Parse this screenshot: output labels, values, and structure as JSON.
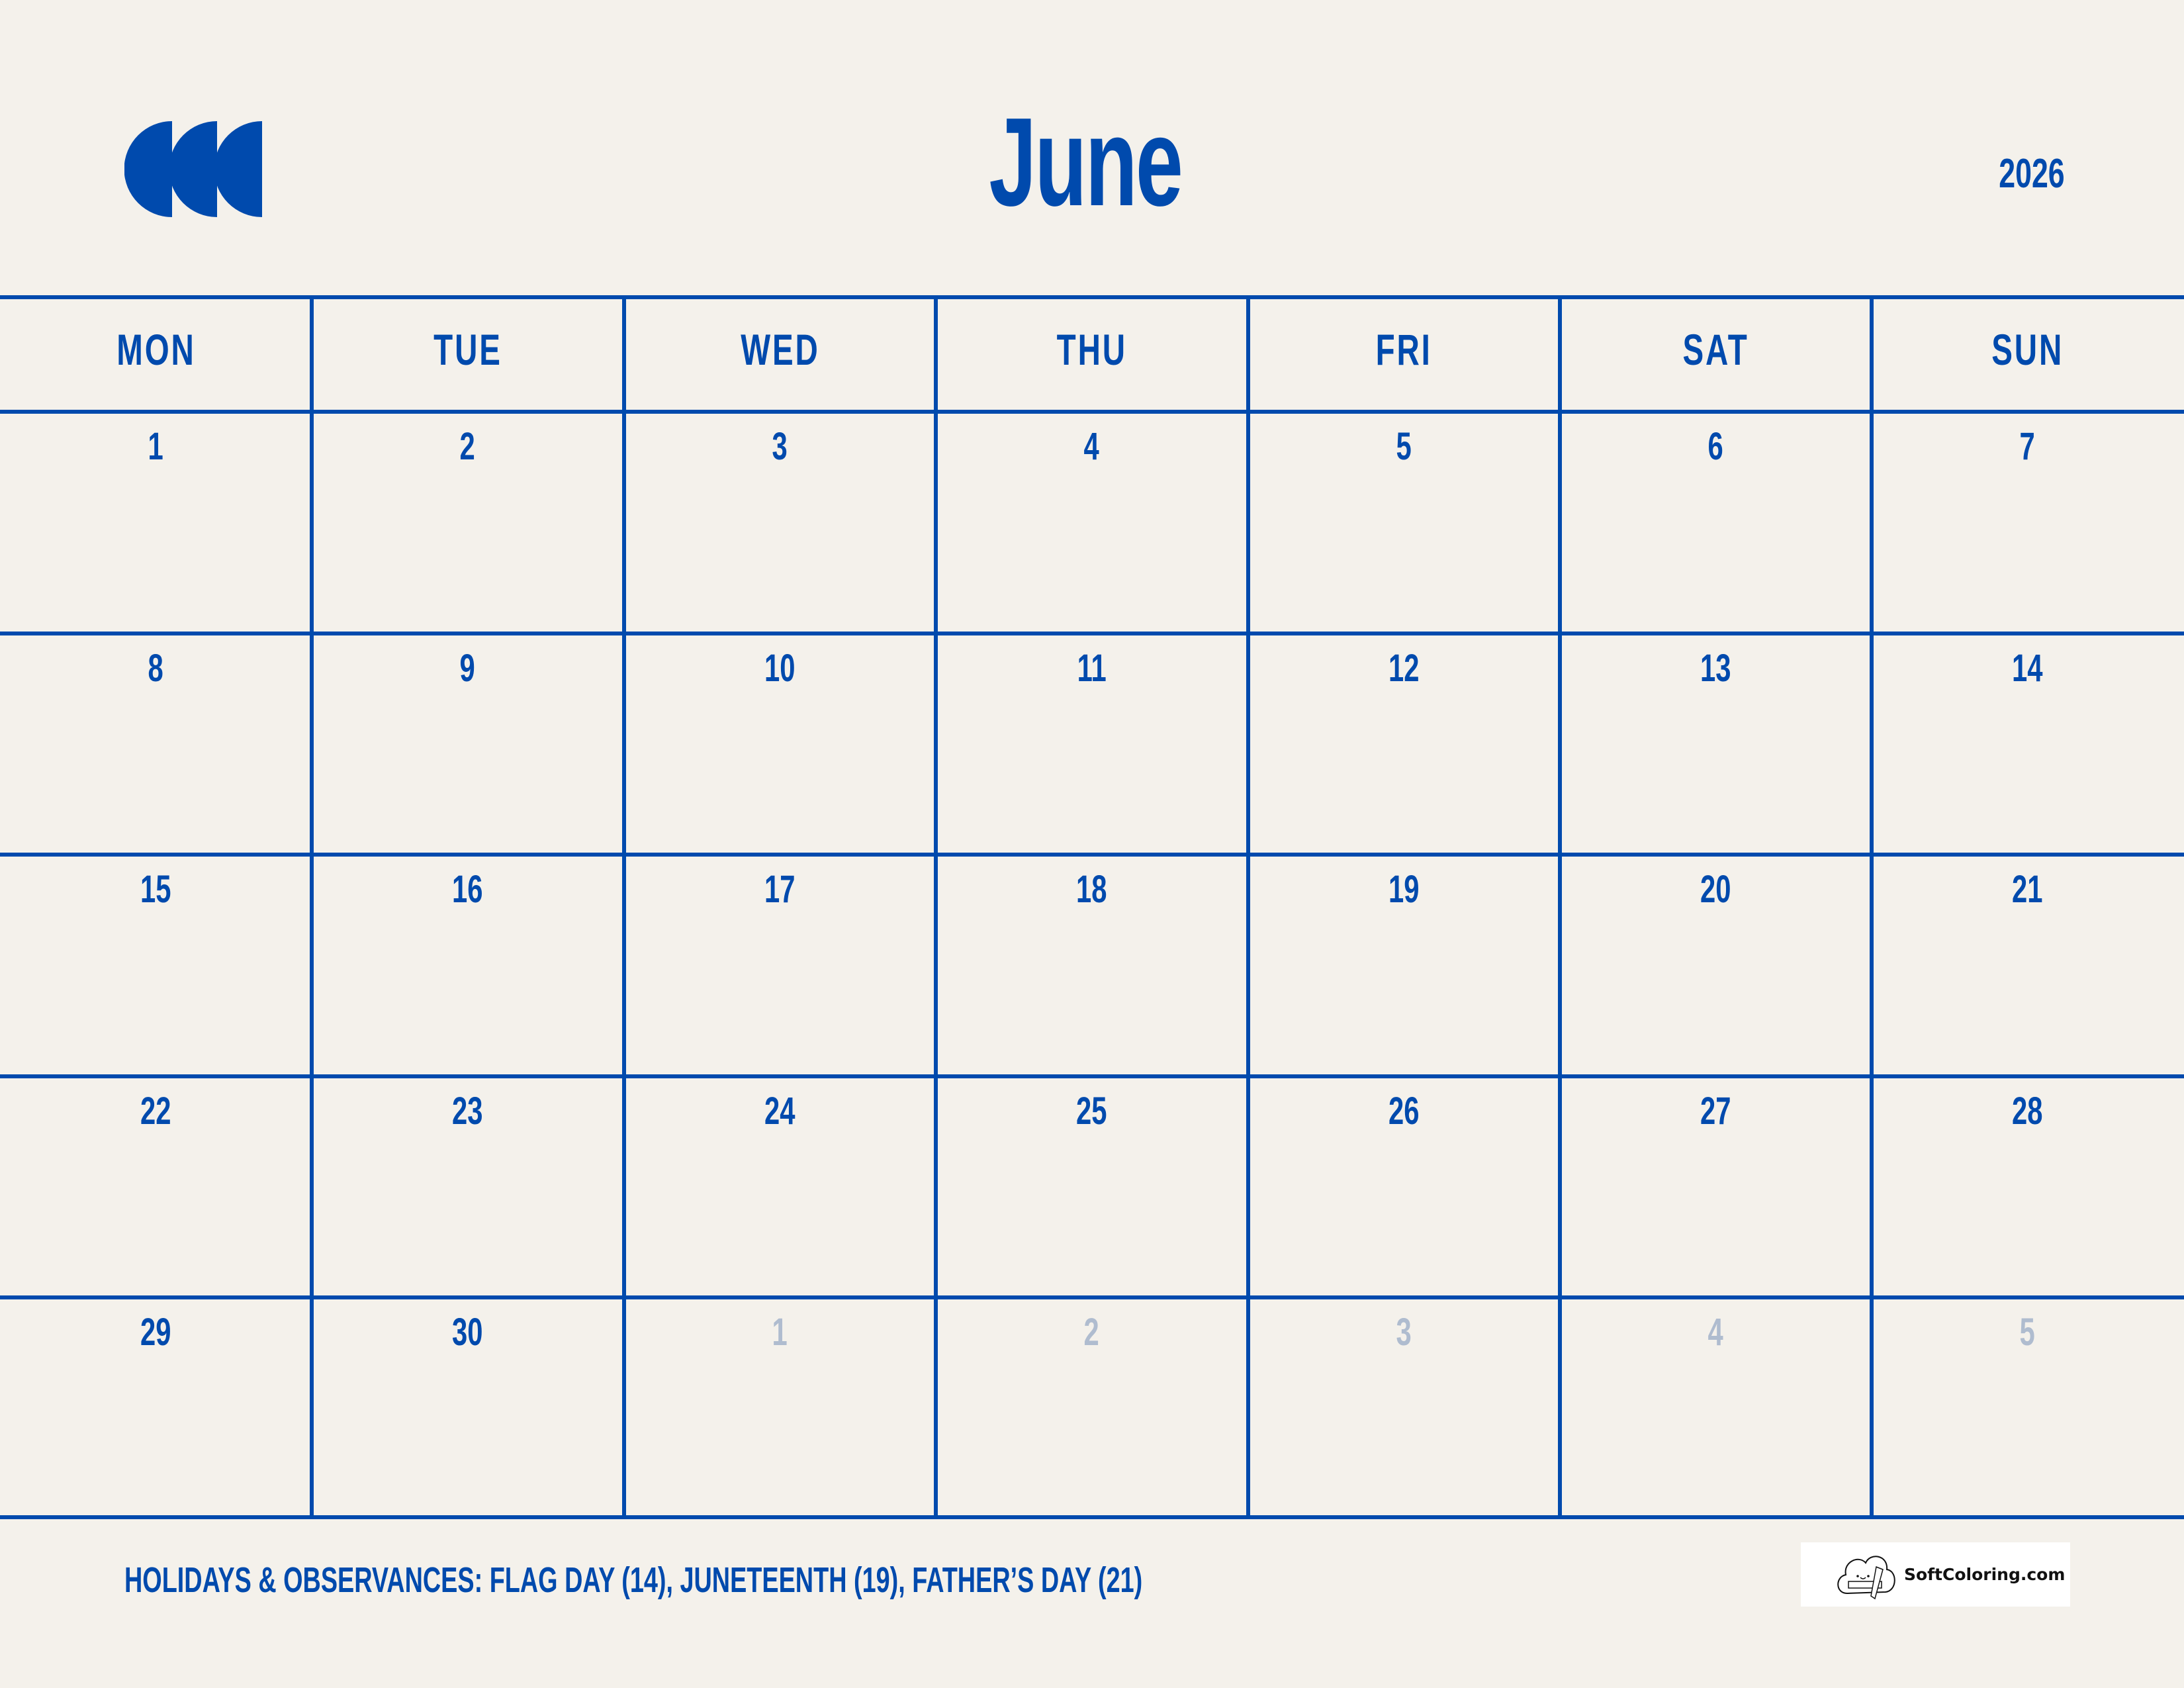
{
  "header": {
    "month": "June",
    "year": "2026",
    "logo_icon": "half-circles-logo-icon"
  },
  "colors": {
    "accent": "#004AAD",
    "background": "#F4F1EB",
    "muted": "#AFBCCF"
  },
  "weekdays": [
    "MON",
    "TUE",
    "WED",
    "THU",
    "FRI",
    "SAT",
    "SUN"
  ],
  "weeks": [
    [
      {
        "d": "1"
      },
      {
        "d": "2"
      },
      {
        "d": "3"
      },
      {
        "d": "4"
      },
      {
        "d": "5"
      },
      {
        "d": "6"
      },
      {
        "d": "7"
      }
    ],
    [
      {
        "d": "8"
      },
      {
        "d": "9"
      },
      {
        "d": "10"
      },
      {
        "d": "11"
      },
      {
        "d": "12"
      },
      {
        "d": "13"
      },
      {
        "d": "14"
      }
    ],
    [
      {
        "d": "15"
      },
      {
        "d": "16"
      },
      {
        "d": "17"
      },
      {
        "d": "18"
      },
      {
        "d": "19"
      },
      {
        "d": "20"
      },
      {
        "d": "21"
      }
    ],
    [
      {
        "d": "22"
      },
      {
        "d": "23"
      },
      {
        "d": "24"
      },
      {
        "d": "25"
      },
      {
        "d": "26"
      },
      {
        "d": "27"
      },
      {
        "d": "28"
      }
    ],
    [
      {
        "d": "29"
      },
      {
        "d": "30"
      },
      {
        "d": "1",
        "other": true
      },
      {
        "d": "2",
        "other": true
      },
      {
        "d": "3",
        "other": true
      },
      {
        "d": "4",
        "other": true
      },
      {
        "d": "5",
        "other": true
      }
    ]
  ],
  "footer": {
    "holidays": "HOLIDAYS & OBSERVANCES: FLAG DAY (14), JUNETEENTH (19), FATHER’S DAY (21)"
  },
  "brand": {
    "name": "SoftColoring.com",
    "icon": "cloud-pencil-icon"
  }
}
